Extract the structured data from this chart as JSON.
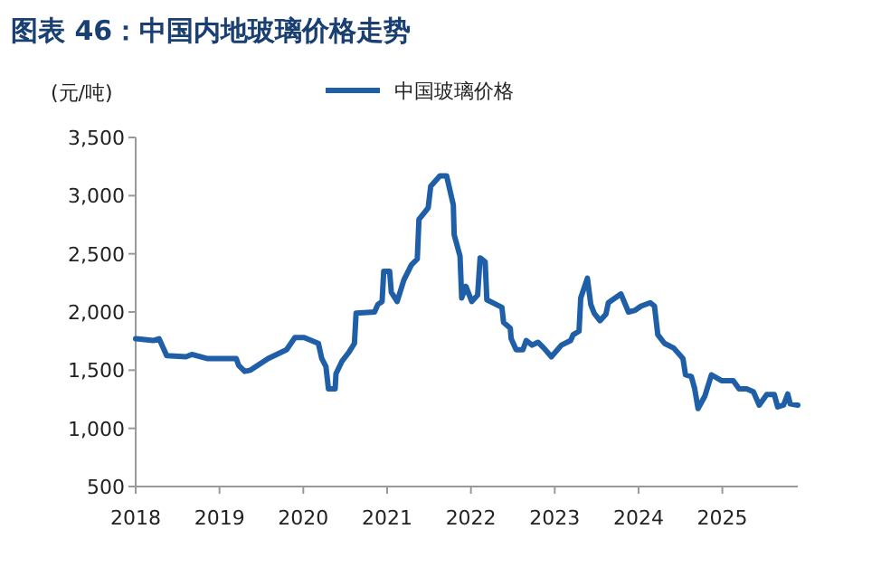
{
  "chart_data": {
    "type": "line",
    "title": "图表 46：中国内地玻璃价格走势",
    "ylabel": "(元/吨)",
    "legend": "top",
    "grid": false,
    "line_style": "solid",
    "xlim": [
      2018,
      2025.9
    ],
    "xticks": [
      2018,
      2019,
      2020,
      2021,
      2022,
      2023,
      2024,
      2025
    ],
    "ylim": [
      500,
      3500
    ],
    "yticks": [
      {
        "value": 500,
        "label": "500"
      },
      {
        "value": 1000,
        "label": "1,000"
      },
      {
        "value": 1500,
        "label": "1,500"
      },
      {
        "value": 2000,
        "label": "2,000"
      },
      {
        "value": 2500,
        "label": "2,500"
      },
      {
        "value": 3000,
        "label": "3,000"
      },
      {
        "value": 3500,
        "label": "3,500"
      }
    ],
    "series": [
      {
        "name": "中国玻璃价格",
        "color": "#1f5fa8",
        "x": [
          2018.0,
          2018.21,
          2018.28,
          2018.37,
          2018.6,
          2018.67,
          2018.85,
          2019.2,
          2019.23,
          2019.3,
          2019.37,
          2019.58,
          2019.8,
          2019.9,
          2020.01,
          2020.18,
          2020.22,
          2020.27,
          2020.3,
          2020.38,
          2020.39,
          2020.46,
          2020.54,
          2020.61,
          2020.63,
          2020.85,
          2020.89,
          2020.94,
          2020.96,
          2021.03,
          2021.05,
          2021.12,
          2021.2,
          2021.29,
          2021.36,
          2021.38,
          2021.49,
          2021.52,
          2021.63,
          2021.71,
          2021.79,
          2021.8,
          2021.87,
          2021.89,
          2021.94,
          2022.01,
          2022.08,
          2022.11,
          2022.17,
          2022.19,
          2022.3,
          2022.37,
          2022.39,
          2022.47,
          2022.48,
          2022.54,
          2022.62,
          2022.66,
          2022.73,
          2022.8,
          2022.87,
          2022.96,
          2023.08,
          2023.19,
          2023.22,
          2023.29,
          2023.31,
          2023.39,
          2023.43,
          2023.47,
          2023.54,
          2023.61,
          2023.64,
          2023.79,
          2023.88,
          2023.96,
          2024.03,
          2024.14,
          2024.19,
          2024.23,
          2024.31,
          2024.42,
          2024.53,
          2024.56,
          2024.63,
          2024.67,
          2024.71,
          2024.79,
          2024.87,
          2024.99,
          2025.13,
          2025.2,
          2025.29,
          2025.37,
          2025.44,
          2025.53,
          2025.62,
          2025.66,
          2025.73,
          2025.78,
          2025.81,
          2025.9
        ],
        "values": [
          1770,
          1755,
          1770,
          1625,
          1615,
          1635,
          1600,
          1600,
          1540,
          1490,
          1500,
          1600,
          1675,
          1780,
          1780,
          1730,
          1600,
          1530,
          1340,
          1340,
          1470,
          1575,
          1650,
          1730,
          1990,
          2000,
          2065,
          2090,
          2350,
          2350,
          2170,
          2090,
          2275,
          2405,
          2455,
          2795,
          2895,
          3080,
          3170,
          3170,
          2920,
          2665,
          2480,
          2120,
          2220,
          2090,
          2145,
          2465,
          2430,
          2105,
          2065,
          2040,
          1910,
          1860,
          1770,
          1675,
          1675,
          1755,
          1715,
          1740,
          1690,
          1615,
          1715,
          1755,
          1805,
          1835,
          2120,
          2290,
          2065,
          1990,
          1925,
          1980,
          2080,
          2155,
          2000,
          2015,
          2050,
          2080,
          2050,
          1805,
          1730,
          1690,
          1600,
          1460,
          1445,
          1340,
          1170,
          1275,
          1460,
          1410,
          1410,
          1340,
          1340,
          1315,
          1200,
          1290,
          1290,
          1185,
          1200,
          1295,
          1210,
          1200
        ]
      }
    ]
  }
}
